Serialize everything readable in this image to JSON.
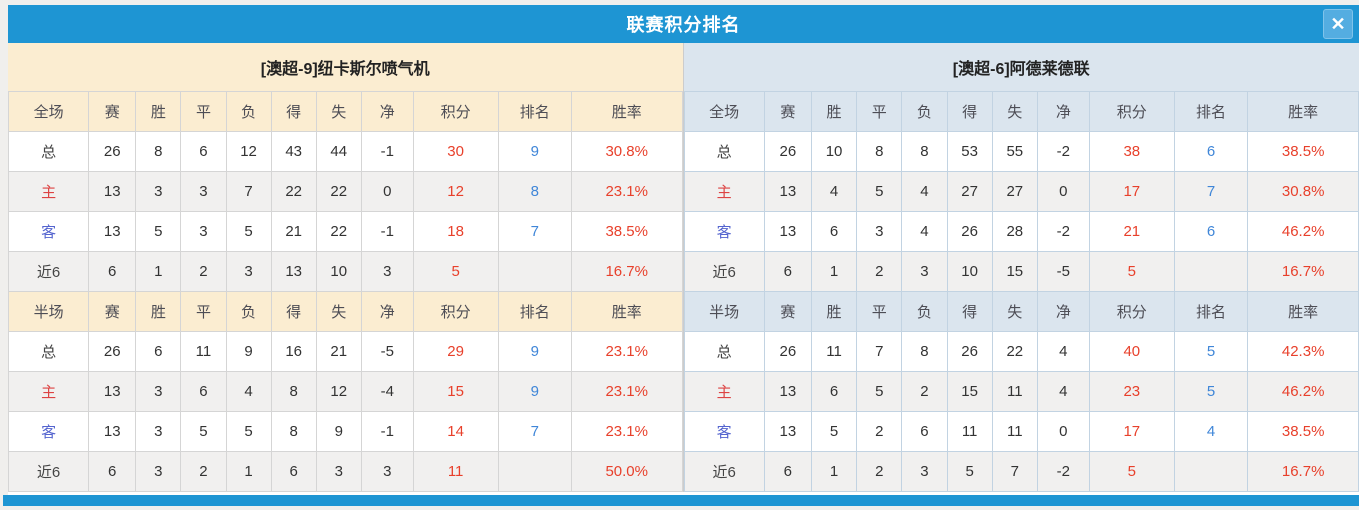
{
  "dialog": {
    "title": "联赛积分排名",
    "close_glyph": "✕"
  },
  "colors": {
    "titlebar_blue": "#1e95d3",
    "close_button_blue": "#54ade1",
    "home_panel_header_bg": "#fbedd1",
    "away_panel_header_bg": "#dbe5ee",
    "points_red": "#e8402b",
    "rank_blue": "#3f86d8",
    "home_row_label_red": "#dd4343",
    "away_row_label_blue": "#5464cf"
  },
  "columns": [
    "赛",
    "胜",
    "平",
    "负",
    "得",
    "失",
    "净",
    "积分",
    "排名",
    "胜率"
  ],
  "teams": [
    {
      "name": "[澳超-9]纽卡斯尔喷气机",
      "tables": [
        {
          "scope": "全场",
          "rows": [
            {
              "label": "总",
              "values": [
                "26",
                "8",
                "6",
                "12",
                "43",
                "44",
                "-1"
              ],
              "points": "30",
              "rank": "9",
              "rate": "30.8%"
            },
            {
              "label": "主",
              "values": [
                "13",
                "3",
                "3",
                "7",
                "22",
                "22",
                "0"
              ],
              "points": "12",
              "rank": "8",
              "rate": "23.1%"
            },
            {
              "label": "客",
              "values": [
                "13",
                "5",
                "3",
                "5",
                "21",
                "22",
                "-1"
              ],
              "points": "18",
              "rank": "7",
              "rate": "38.5%"
            },
            {
              "label": "近6",
              "values": [
                "6",
                "1",
                "2",
                "3",
                "13",
                "10",
                "3"
              ],
              "points": "5",
              "rank": "",
              "rate": "16.7%"
            }
          ]
        },
        {
          "scope": "半场",
          "rows": [
            {
              "label": "总",
              "values": [
                "26",
                "6",
                "11",
                "9",
                "16",
                "21",
                "-5"
              ],
              "points": "29",
              "rank": "9",
              "rate": "23.1%"
            },
            {
              "label": "主",
              "values": [
                "13",
                "3",
                "6",
                "4",
                "8",
                "12",
                "-4"
              ],
              "points": "15",
              "rank": "9",
              "rate": "23.1%"
            },
            {
              "label": "客",
              "values": [
                "13",
                "3",
                "5",
                "5",
                "8",
                "9",
                "-1"
              ],
              "points": "14",
              "rank": "7",
              "rate": "23.1%"
            },
            {
              "label": "近6",
              "values": [
                "6",
                "3",
                "2",
                "1",
                "6",
                "3",
                "3"
              ],
              "points": "11",
              "rank": "",
              "rate": "50.0%"
            }
          ]
        }
      ]
    },
    {
      "name": "[澳超-6]阿德莱德联",
      "tables": [
        {
          "scope": "全场",
          "rows": [
            {
              "label": "总",
              "values": [
                "26",
                "10",
                "8",
                "8",
                "53",
                "55",
                "-2"
              ],
              "points": "38",
              "rank": "6",
              "rate": "38.5%"
            },
            {
              "label": "主",
              "values": [
                "13",
                "4",
                "5",
                "4",
                "27",
                "27",
                "0"
              ],
              "points": "17",
              "rank": "7",
              "rate": "30.8%"
            },
            {
              "label": "客",
              "values": [
                "13",
                "6",
                "3",
                "4",
                "26",
                "28",
                "-2"
              ],
              "points": "21",
              "rank": "6",
              "rate": "46.2%"
            },
            {
              "label": "近6",
              "values": [
                "6",
                "1",
                "2",
                "3",
                "10",
                "15",
                "-5"
              ],
              "points": "5",
              "rank": "",
              "rate": "16.7%"
            }
          ]
        },
        {
          "scope": "半场",
          "rows": [
            {
              "label": "总",
              "values": [
                "26",
                "11",
                "7",
                "8",
                "26",
                "22",
                "4"
              ],
              "points": "40",
              "rank": "5",
              "rate": "42.3%"
            },
            {
              "label": "主",
              "values": [
                "13",
                "6",
                "5",
                "2",
                "15",
                "11",
                "4"
              ],
              "points": "23",
              "rank": "5",
              "rate": "46.2%"
            },
            {
              "label": "客",
              "values": [
                "13",
                "5",
                "2",
                "6",
                "11",
                "11",
                "0"
              ],
              "points": "17",
              "rank": "4",
              "rate": "38.5%"
            },
            {
              "label": "近6",
              "values": [
                "6",
                "1",
                "2",
                "3",
                "5",
                "7",
                "-2"
              ],
              "points": "5",
              "rank": "",
              "rate": "16.7%"
            }
          ]
        }
      ]
    }
  ]
}
